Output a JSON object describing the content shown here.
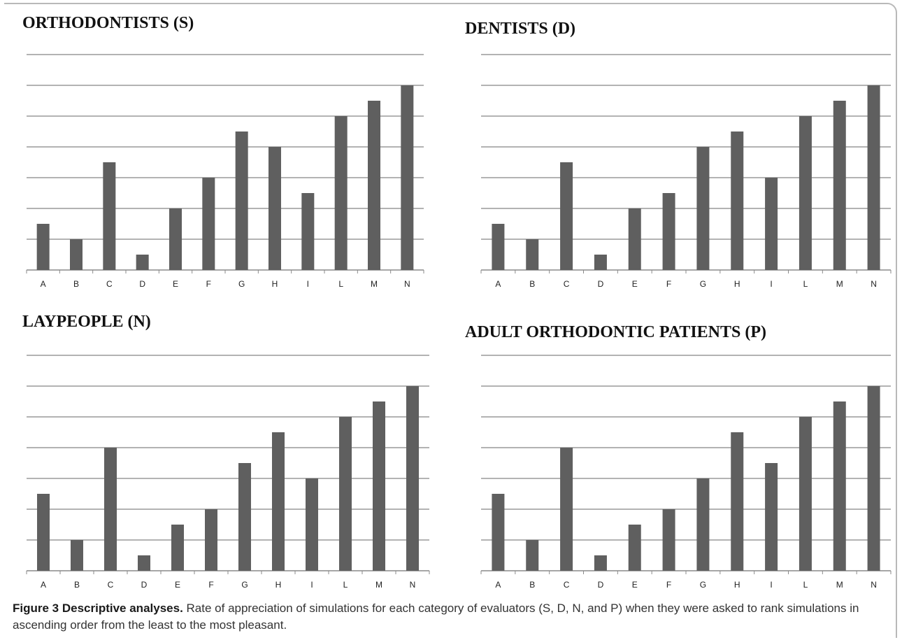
{
  "caption": {
    "label": "Figure 3 Descriptive analyses.",
    "text": "Rate of appreciation of simulations for each category of evaluators (S, D, N, and P) when they were asked to rank simulations in ascending order from the least to the most pleasant."
  },
  "colors": {
    "bar": "#5f5f5f",
    "grid": "#b3b3b3",
    "axis": "#8a8a8a"
  },
  "chart_data": [
    {
      "type": "bar",
      "title": "ORTHODONTISTS (S)",
      "categories": [
        "A",
        "B",
        "C",
        "D",
        "E",
        "F",
        "G",
        "H",
        "I",
        "L",
        "M",
        "N"
      ],
      "values": [
        3,
        2,
        7,
        1,
        4,
        6,
        9,
        8,
        5,
        10,
        11,
        12
      ],
      "ylim": [
        0,
        14
      ],
      "grid": true
    },
    {
      "type": "bar",
      "title": "DENTISTS (D)",
      "categories": [
        "A",
        "B",
        "C",
        "D",
        "E",
        "F",
        "G",
        "H",
        "I",
        "L",
        "M",
        "N"
      ],
      "values": [
        3,
        2,
        7,
        1,
        4,
        5,
        8,
        9,
        6,
        10,
        11,
        12
      ],
      "ylim": [
        0,
        14
      ],
      "grid": true
    },
    {
      "type": "bar",
      "title": "LAYPEOPLE (N)",
      "categories": [
        "A",
        "B",
        "C",
        "D",
        "E",
        "F",
        "G",
        "H",
        "I",
        "L",
        "M",
        "N"
      ],
      "values": [
        5,
        2,
        8,
        1,
        3,
        4,
        7,
        9,
        6,
        10,
        11,
        12
      ],
      "ylim": [
        0,
        14
      ],
      "grid": true
    },
    {
      "type": "bar",
      "title": "ADULT ORTHODONTIC PATIENTS (P)",
      "categories": [
        "A",
        "B",
        "C",
        "D",
        "E",
        "F",
        "G",
        "H",
        "I",
        "L",
        "M",
        "N"
      ],
      "values": [
        5,
        2,
        8,
        1,
        3,
        4,
        6,
        9,
        7,
        10,
        11,
        12
      ],
      "ylim": [
        0,
        14
      ],
      "grid": true
    }
  ]
}
